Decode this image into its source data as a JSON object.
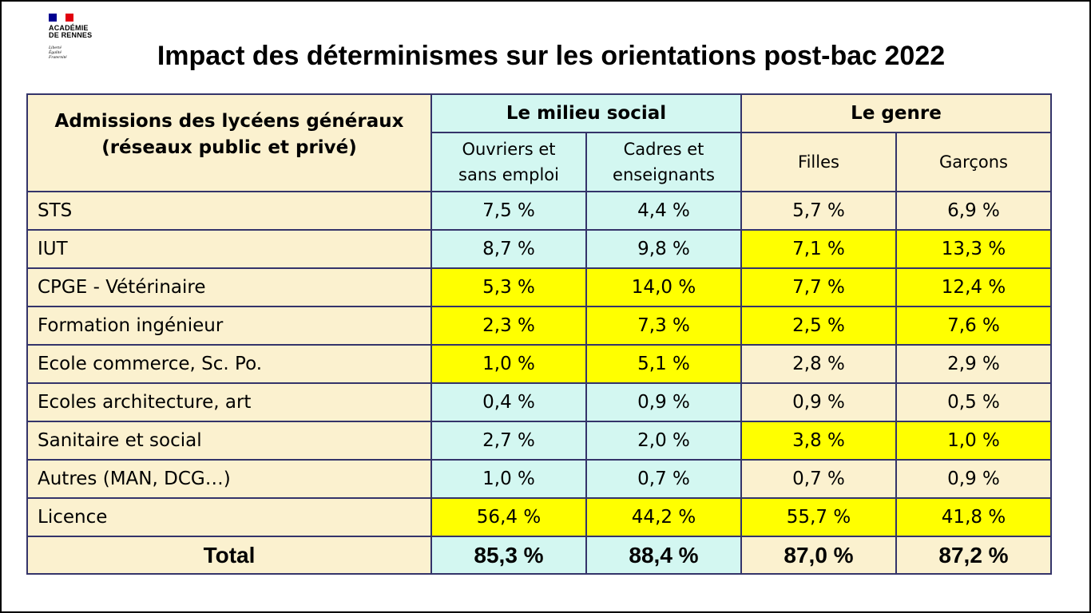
{
  "logo": {
    "name": "ACADÉMIE\nDE RENNES",
    "motto": "Liberté\nÉgalité\nFraternité"
  },
  "title": "Impact des déterminismes sur les orientations post-bac 2022",
  "colors": {
    "header_beige": "#fbf1cf",
    "social_cyan": "#d3f7f1",
    "highlight_yellow": "#ffff00",
    "border": "#34346a"
  },
  "table": {
    "main_header": "Admissions des lycéens généraux\n(réseaux public et privé)",
    "groups": [
      {
        "label": "Le milieu social"
      },
      {
        "label": "Le genre"
      }
    ],
    "columns": [
      {
        "label": "Ouvriers et\nsans emploi"
      },
      {
        "label": "Cadres et\nenseignants"
      },
      {
        "label": "Filles"
      },
      {
        "label": "Garçons"
      }
    ],
    "rows": [
      {
        "label": "STS",
        "values": [
          "7,5 %",
          "4,4 %",
          "5,7 %",
          "6,9 %"
        ],
        "highlight": [
          false,
          false,
          false,
          false
        ]
      },
      {
        "label": "IUT",
        "values": [
          "8,7 %",
          "9,8 %",
          "7,1 %",
          "13,3 %"
        ],
        "highlight": [
          false,
          false,
          true,
          true
        ]
      },
      {
        "label": "CPGE - Vétérinaire",
        "values": [
          "5,3 %",
          "14,0 %",
          "7,7 %",
          "12,4 %"
        ],
        "highlight": [
          true,
          true,
          true,
          true
        ]
      },
      {
        "label": "Formation ingénieur",
        "values": [
          "2,3 %",
          "7,3 %",
          "2,5 %",
          "7,6 %"
        ],
        "highlight": [
          true,
          true,
          true,
          true
        ]
      },
      {
        "label": "Ecole commerce, Sc. Po.",
        "values": [
          "1,0 %",
          "5,1 %",
          "2,8 %",
          "2,9 %"
        ],
        "highlight": [
          true,
          true,
          false,
          false
        ]
      },
      {
        "label": "Ecoles architecture, art",
        "values": [
          "0,4 %",
          "0,9 %",
          "0,9 %",
          "0,5 %"
        ],
        "highlight": [
          false,
          false,
          false,
          false
        ]
      },
      {
        "label": "Sanitaire et social",
        "values": [
          "2,7 %",
          "2,0 %",
          "3,8 %",
          "1,0 %"
        ],
        "highlight": [
          false,
          false,
          true,
          true
        ]
      },
      {
        "label": "Autres (MAN, DCG…)",
        "values": [
          "1,0 %",
          "0,7 %",
          "0,7 %",
          "0,9 %"
        ],
        "highlight": [
          false,
          false,
          false,
          false
        ]
      },
      {
        "label": "Licence",
        "values": [
          "56,4 %",
          "44,2 %",
          "55,7 %",
          "41,8 %"
        ],
        "highlight": [
          true,
          true,
          true,
          true
        ]
      }
    ],
    "total": {
      "label": "Total",
      "values": [
        "85,3 %",
        "88,4 %",
        "87,0 %",
        "87,2 %"
      ]
    }
  }
}
